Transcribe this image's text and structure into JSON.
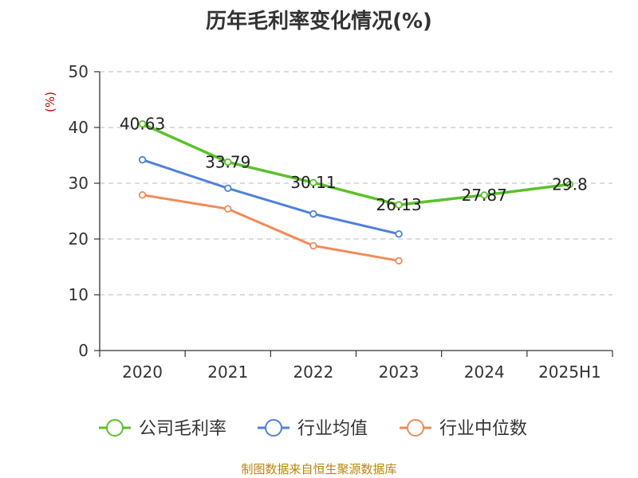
{
  "title": "历年毛利率变化情况(%)",
  "source": "制图数据来自恒生聚源数据库",
  "chart_data": {
    "type": "line",
    "ylabel": "(%)",
    "ylim": [
      0,
      50
    ],
    "yticks": [
      0,
      10,
      20,
      30,
      40,
      50
    ],
    "grid": true,
    "legend_position": "bottom",
    "categories": [
      "2020",
      "2021",
      "2022",
      "2023",
      "2024",
      "2025H1"
    ],
    "series": [
      {
        "name": "公司毛利率",
        "color": "#5cc12b",
        "values": [
          40.63,
          33.79,
          30.11,
          26.13,
          27.87,
          29.8
        ],
        "labels": [
          "40.63",
          "33.79",
          "30.11",
          "26.13",
          "27.87",
          "29.8"
        ]
      },
      {
        "name": "行业均值",
        "color": "#4f81d9",
        "values": [
          34.2,
          29.1,
          24.5,
          20.9,
          null,
          null
        ]
      },
      {
        "name": "行业中位数",
        "color": "#f28a5a",
        "values": [
          27.9,
          25.4,
          18.8,
          16.1,
          null,
          null
        ]
      }
    ]
  }
}
